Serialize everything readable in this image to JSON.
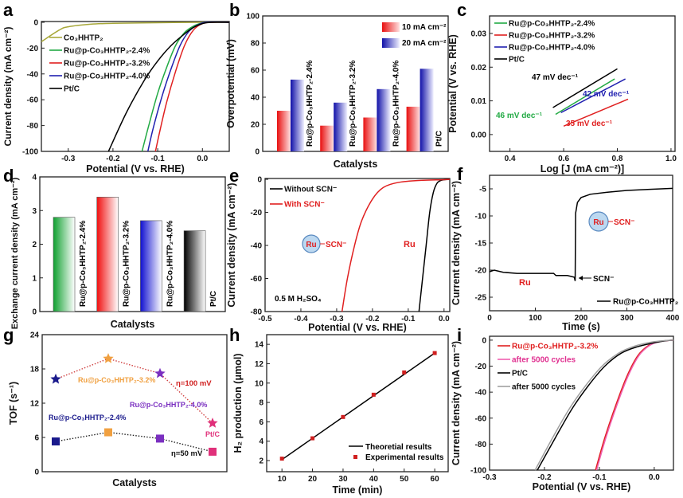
{
  "chart_data": [
    {
      "panel": "a",
      "type": "line",
      "xlabel": "Potential (V vs. RHE)",
      "ylabel": "Current density (mA cm⁻²)",
      "xlim": [
        -0.36,
        0.06
      ],
      "ylim": [
        -100,
        0.6
      ],
      "xticks": [
        -0.3,
        -0.2,
        -0.1,
        0.0
      ],
      "xtick_labels": [
        "-0.3",
        "-0.2",
        "-0.1",
        "0.0"
      ],
      "yticks": [
        0,
        -20,
        -40,
        -60,
        -80,
        -100
      ],
      "ytick_labels": [
        "0",
        "-20",
        "-40",
        "-60",
        "-80",
        "-100"
      ],
      "legend": "top-left",
      "series": [
        {
          "name": "Co₃HHTP₂",
          "color": "#a8a83a",
          "points": [
            [
              -0.36,
              -15
            ],
            [
              -0.32,
              -6
            ],
            [
              -0.3,
              -3.5
            ],
            [
              -0.25,
              -1.5
            ],
            [
              -0.2,
              -0.8
            ],
            [
              -0.1,
              -0.3
            ],
            [
              0,
              0
            ],
            [
              0.06,
              0
            ]
          ]
        },
        {
          "name": "Ru@p-Co₃HHTP₂-2.4%",
          "color": "#22aa44",
          "points": [
            [
              -0.135,
              -100
            ],
            [
              -0.12,
              -80
            ],
            [
              -0.1,
              -55
            ],
            [
              -0.08,
              -35
            ],
            [
              -0.06,
              -18
            ],
            [
              -0.04,
              -8
            ],
            [
              -0.02,
              -3
            ],
            [
              0,
              -0.5
            ],
            [
              0.02,
              0
            ],
            [
              0.06,
              0
            ]
          ]
        },
        {
          "name": "Ru@p-Co₃HHTP₂-3.2%",
          "color": "#e02020",
          "points": [
            [
              -0.105,
              -100
            ],
            [
              -0.095,
              -84
            ],
            [
              -0.08,
              -62
            ],
            [
              -0.06,
              -38
            ],
            [
              -0.04,
              -18
            ],
            [
              -0.02,
              -6
            ],
            [
              0,
              -1
            ],
            [
              0.02,
              0
            ],
            [
              0.06,
              0
            ]
          ]
        },
        {
          "name": "Ru@p-Co₃HHTP₂-4.0%",
          "color": "#2020b0",
          "points": [
            [
              -0.122,
              -100
            ],
            [
              -0.11,
              -82
            ],
            [
              -0.09,
              -57
            ],
            [
              -0.07,
              -36
            ],
            [
              -0.05,
              -18
            ],
            [
              -0.03,
              -7
            ],
            [
              -0.01,
              -2
            ],
            [
              0.01,
              0
            ],
            [
              0.06,
              0
            ]
          ]
        },
        {
          "name": "Pt/C",
          "color": "#000000",
          "points": [
            [
              -0.21,
              -100
            ],
            [
              -0.17,
              -70
            ],
            [
              -0.13,
              -45
            ],
            [
              -0.1,
              -30
            ],
            [
              -0.07,
              -18
            ],
            [
              -0.04,
              -9
            ],
            [
              -0.02,
              -4
            ],
            [
              0,
              -1
            ],
            [
              0.02,
              0
            ],
            [
              0.06,
              0
            ]
          ]
        }
      ]
    },
    {
      "panel": "b",
      "type": "bar",
      "xlabel": "Catalysts",
      "ylabel": "Overpotential (mV)",
      "ylim": [
        0,
        100
      ],
      "yticks": [
        0,
        20,
        40,
        60,
        80,
        100
      ],
      "ytick_labels": [
        "0",
        "20",
        "40",
        "60",
        "80",
        "100"
      ],
      "categories": [
        "Ru@p-Co₃HHTP₂-2.4%",
        "Ru@p-Co₃HHTP₂-3.2%",
        "Ru@p-Co₃HHTP₂-4.0%",
        "Pt/C"
      ],
      "legend": "top-right",
      "series": [
        {
          "name": "10 mA cm⁻²",
          "color": "#e81010",
          "values": [
            30,
            19,
            25,
            33
          ]
        },
        {
          "name": "20 mA cm⁻²",
          "color": "#1010b0",
          "values": [
            53,
            36,
            46,
            61
          ]
        }
      ]
    },
    {
      "panel": "c",
      "type": "line",
      "xlabel": "Log [J (mA cm⁻²)]",
      "ylabel": "Potential (V vs. RHE)",
      "xlim": [
        0.324,
        1.015
      ],
      "ylim": [
        -0.005,
        0.0352
      ],
      "xticks": [
        0.4,
        0.6,
        0.8,
        1.0
      ],
      "xtick_labels": [
        "0.4",
        "0.6",
        "0.8",
        "1.0"
      ],
      "yticks": [
        0.0,
        0.01,
        0.02,
        0.03
      ],
      "ytick_labels": [
        "0.00",
        "0.01",
        "0.02",
        "0.03"
      ],
      "legend": "top-left",
      "series": [
        {
          "name": "Ru@p-Co₃HHTP₂-2.4%",
          "color": "#22aa44",
          "points": [
            [
              0.57,
              0.006
            ],
            [
              0.79,
              0.0165
            ]
          ],
          "annotation": "46 mV dec⁻¹"
        },
        {
          "name": "Ru@p-Co₃HHTP₂-3.2%",
          "color": "#e02020",
          "points": [
            [
              0.6,
              0.0025
            ],
            [
              0.84,
              0.0105
            ]
          ],
          "annotation": "35 mV dec⁻¹"
        },
        {
          "name": "Ru@p-Co₃HHTP₂-4.0%",
          "color": "#2020b0",
          "points": [
            [
              0.59,
              0.0065
            ],
            [
              0.83,
              0.0165
            ]
          ],
          "annotation": "42 mV dec⁻¹"
        },
        {
          "name": "Pt/C",
          "color": "#000000",
          "points": [
            [
              0.56,
              0.008
            ],
            [
              0.8,
              0.0195
            ]
          ],
          "annotation": "47 mV dec⁻¹"
        }
      ]
    },
    {
      "panel": "d",
      "type": "bar",
      "xlabel": "Catalysts",
      "ylabel": "Exchange current density (mA cm⁻²)",
      "ylim": [
        0,
        4
      ],
      "yticks": [
        0,
        1,
        2,
        3,
        4
      ],
      "ytick_labels": [
        "0",
        "1",
        "2",
        "3",
        "4"
      ],
      "categories": [
        "Ru@p-Co₃HHTP₂-2.4%",
        "Ru@p-Co₃HHTP₂-3.2%",
        "Ru@p-Co₃HHTP₂-4.0%",
        "Pt/C"
      ],
      "colors": [
        "#10a030",
        "#f01010",
        "#1010d0",
        "#000000"
      ],
      "values": [
        2.8,
        3.4,
        2.7,
        2.4
      ]
    },
    {
      "panel": "e",
      "type": "line",
      "xlabel": "Potential (V vs. RHE)",
      "ylabel": "Current density (mA cm⁻²)",
      "xlim": [
        -0.5,
        0.016
      ],
      "ylim": [
        -80,
        0.5
      ],
      "xticks": [
        -0.5,
        -0.4,
        -0.3,
        -0.2,
        -0.1,
        0.0
      ],
      "xtick_labels": [
        "-0.5",
        "-0.4",
        "-0.3",
        "-0.2",
        "-0.1",
        "0.0"
      ],
      "yticks": [
        0,
        -20,
        -40,
        -60,
        -80
      ],
      "ytick_labels": [
        "0",
        "-20",
        "-40",
        "-60",
        "-80"
      ],
      "legend": "top-left",
      "annotations": {
        "ru_scn_ru": "Ru",
        "ru_scn_scn": "SCN⁻",
        "ru": "Ru",
        "electrolyte": "0.5 M H₂SO₄"
      },
      "series": [
        {
          "name": "Without SCN⁻",
          "color": "#000000",
          "points": [
            [
              -0.07,
              -80
            ],
            [
              -0.06,
              -60
            ],
            [
              -0.05,
              -40
            ],
            [
              -0.04,
              -20
            ],
            [
              -0.03,
              -8
            ],
            [
              -0.02,
              -2.5
            ],
            [
              -0.01,
              -0.8
            ],
            [
              0,
              -0.3
            ],
            [
              0.016,
              0
            ]
          ]
        },
        {
          "name": "With SCN⁻",
          "color": "#e02020",
          "points": [
            [
              -0.285,
              -80
            ],
            [
              -0.27,
              -60
            ],
            [
              -0.25,
              -40
            ],
            [
              -0.23,
              -25
            ],
            [
              -0.2,
              -12
            ],
            [
              -0.17,
              -5
            ],
            [
              -0.13,
              -2
            ],
            [
              -0.08,
              -0.8
            ],
            [
              0,
              -0.2
            ],
            [
              0.016,
              0
            ]
          ]
        }
      ]
    },
    {
      "panel": "f",
      "type": "line",
      "xlabel": "Time (s)",
      "ylabel": "Current density (mA cm⁻²)",
      "xlim": [
        0,
        400
      ],
      "ylim": [
        -27.5,
        -2.5
      ],
      "xticks": [
        0,
        100,
        200,
        300,
        400
      ],
      "xtick_labels": [
        "0",
        "100",
        "200",
        "300",
        "400"
      ],
      "yticks": [
        -5,
        -10,
        -15,
        -20,
        -25
      ],
      "ytick_labels": [
        "-5",
        "-10",
        "-15",
        "-20",
        "-25"
      ],
      "legend": "bottom-right",
      "annotations": {
        "ru": "Ru",
        "scn_arrow": "SCN⁻",
        "ru_scn_ru": "Ru",
        "ru_scn_scn": "SCN⁻"
      },
      "series": [
        {
          "name": "Ru@p-Co₃HHTP₂",
          "color": "#000000",
          "points": [
            [
              0,
              -20.3
            ],
            [
              10,
              -20
            ],
            [
              30,
              -20.4
            ],
            [
              60,
              -20.6
            ],
            [
              140,
              -20.6
            ],
            [
              145,
              -21
            ],
            [
              170,
              -21
            ],
            [
              185,
              -21.3
            ],
            [
              187,
              -22
            ],
            [
              188,
              -9.5
            ],
            [
              192,
              -7.5
            ],
            [
              200,
              -6.6
            ],
            [
              220,
              -6
            ],
            [
              260,
              -5.6
            ],
            [
              300,
              -5.3
            ],
            [
              350,
              -5.1
            ],
            [
              400,
              -4.9
            ]
          ]
        }
      ]
    },
    {
      "panel": "g",
      "type": "scatter",
      "xlabel": "Catalysts",
      "ylabel": "TOF (s⁻¹)",
      "ylim": [
        0,
        24
      ],
      "yticks": [
        0,
        6,
        12,
        18,
        24
      ],
      "ytick_labels": [
        "0",
        "6",
        "12",
        "18",
        "24"
      ],
      "categories": [
        "Ru@p-Co₃HHTP₂-2.4%",
        "Ru@p-Co₃HHTP₂-3.2%",
        "Ru@p-Co₃HHTP₂-4.0%",
        "Pt/C"
      ],
      "category_colors": [
        "#1a1a8c",
        "#f0a040",
        "#7a2fc0",
        "#e0307a"
      ],
      "series": [
        {
          "name": "η=100 mV",
          "marker": "star",
          "line_color": "#d04040",
          "values": [
            16.2,
            19.8,
            17.2,
            8.5
          ]
        },
        {
          "name": "η=50 mV",
          "marker": "square",
          "line_color": "#222222",
          "values": [
            5.3,
            6.9,
            5.8,
            3.5
          ]
        }
      ]
    },
    {
      "panel": "h",
      "type": "line",
      "xlabel": "Time (min)",
      "ylabel": "H₂ production (μmol)",
      "xlim": [
        5,
        64.4
      ],
      "ylim": [
        0.85,
        15
      ],
      "xticks": [
        10,
        20,
        30,
        40,
        50,
        60
      ],
      "xtick_labels": [
        "10",
        "20",
        "30",
        "40",
        "50",
        "60"
      ],
      "yticks": [
        2,
        4,
        6,
        8,
        10,
        12,
        14
      ],
      "ytick_labels": [
        "2",
        "4",
        "6",
        "8",
        "10",
        "12",
        "14"
      ],
      "legend": "bottom-right",
      "series": [
        {
          "name": "Theoretial results",
          "color": "#000000",
          "kind": "line",
          "points": [
            [
              10,
              2.1
            ],
            [
              60,
              13.1
            ]
          ]
        },
        {
          "name": "Experimental results",
          "color": "#d02020",
          "kind": "scatter",
          "points": [
            [
              10,
              2.2
            ],
            [
              20,
              4.3
            ],
            [
              30,
              6.5
            ],
            [
              40,
              8.8
            ],
            [
              50,
              11.1
            ],
            [
              60,
              13.1
            ]
          ]
        }
      ]
    },
    {
      "panel": "i",
      "type": "line",
      "xlabel": "Potential (V vs. RHE)",
      "ylabel": "Current density (mA cm⁻²)",
      "xlim": [
        -0.3,
        0.035
      ],
      "ylim": [
        -100,
        3
      ],
      "xticks": [
        -0.3,
        -0.2,
        -0.1,
        0.0
      ],
      "xtick_labels": [
        "-0.3",
        "-0.2",
        "-0.1",
        "0.0"
      ],
      "yticks": [
        0,
        -20,
        -40,
        -60,
        -80,
        -100
      ],
      "ytick_labels": [
        "0",
        "-20",
        "-40",
        "-60",
        "-80",
        "-100"
      ],
      "legend": "top-left",
      "series": [
        {
          "name": "Ru@p-Co₃HHTP₂-3.2%",
          "color": "#e02020",
          "points": [
            [
              -0.107,
              -100
            ],
            [
              -0.09,
              -75
            ],
            [
              -0.07,
              -50
            ],
            [
              -0.05,
              -28
            ],
            [
              -0.03,
              -12
            ],
            [
              -0.01,
              -4
            ],
            [
              0.01,
              -1
            ],
            [
              0.035,
              0
            ]
          ]
        },
        {
          "name": "after 5000 cycles",
          "color": "#f060b0",
          "points": [
            [
              -0.105,
              -100
            ],
            [
              -0.088,
              -75
            ],
            [
              -0.068,
              -50
            ],
            [
              -0.048,
              -28
            ],
            [
              -0.028,
              -12
            ],
            [
              -0.008,
              -4
            ],
            [
              0.012,
              -1
            ],
            [
              0.035,
              0
            ]
          ]
        },
        {
          "name": "Pt/C",
          "color": "#000000",
          "points": [
            [
              -0.213,
              -100
            ],
            [
              -0.18,
              -75
            ],
            [
              -0.15,
              -53
            ],
            [
              -0.12,
              -35
            ],
            [
              -0.09,
              -20
            ],
            [
              -0.06,
              -10
            ],
            [
              -0.03,
              -5
            ],
            [
              0,
              -2
            ],
            [
              0.02,
              -0.5
            ],
            [
              0.035,
              0
            ]
          ]
        },
        {
          "name": "after 5000 cycles",
          "color": "#a0a0a0",
          "points": [
            [
              -0.217,
              -100
            ],
            [
              -0.185,
              -75
            ],
            [
              -0.155,
              -53
            ],
            [
              -0.125,
              -35
            ],
            [
              -0.095,
              -20
            ],
            [
              -0.065,
              -10
            ],
            [
              -0.035,
              -4.5
            ],
            [
              -0.005,
              -1.5
            ],
            [
              0.02,
              -0.3
            ],
            [
              0.035,
              0
            ]
          ]
        }
      ]
    }
  ]
}
